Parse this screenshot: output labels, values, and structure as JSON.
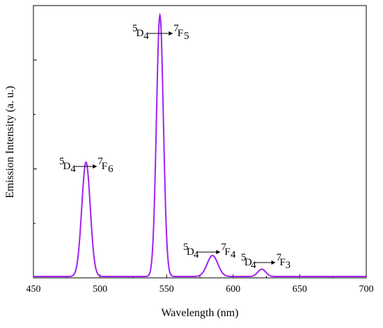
{
  "chart_data": {
    "type": "line",
    "title": "",
    "xlabel": "Wavelength (nm)",
    "ylabel": "Emission Intensity (a. u.)",
    "xlim": [
      450,
      700
    ],
    "ylim": [
      0,
      1.0
    ],
    "x_ticks": [
      "450",
      "500",
      "550",
      "600",
      "650",
      "700"
    ],
    "y_ticks_labeled": false,
    "y_major_tick_values": [
      0.4,
      0.8
    ],
    "legend": "none",
    "grid": false,
    "line_color": "#a020f0",
    "series": [
      {
        "peaks": [
          {
            "center": 489.5,
            "height": 0.42,
            "width": 3.2
          },
          {
            "center": 545.0,
            "height": 0.96,
            "width": 2.6
          },
          {
            "center": 584.5,
            "height": 0.077,
            "width": 4.0
          },
          {
            "center": 621.5,
            "height": 0.027,
            "width": 3.0
          }
        ],
        "baseline": 0.005
      }
    ],
    "annotations": [
      {
        "upper": "5",
        "lower": "D",
        "sub": "4",
        "to_upper": "7",
        "to_lower": "F",
        "to_sub": "6"
      },
      {
        "upper": "5",
        "lower": "D",
        "sub": "4",
        "to_upper": "7",
        "to_lower": "F",
        "to_sub": "5"
      },
      {
        "upper": "5",
        "lower": "D",
        "sub": "4",
        "to_upper": "7",
        "to_lower": "F",
        "to_sub": "4"
      },
      {
        "upper": "5",
        "lower": "D",
        "sub": "4",
        "to_upper": "7",
        "to_lower": "F",
        "to_sub": "3"
      }
    ]
  }
}
